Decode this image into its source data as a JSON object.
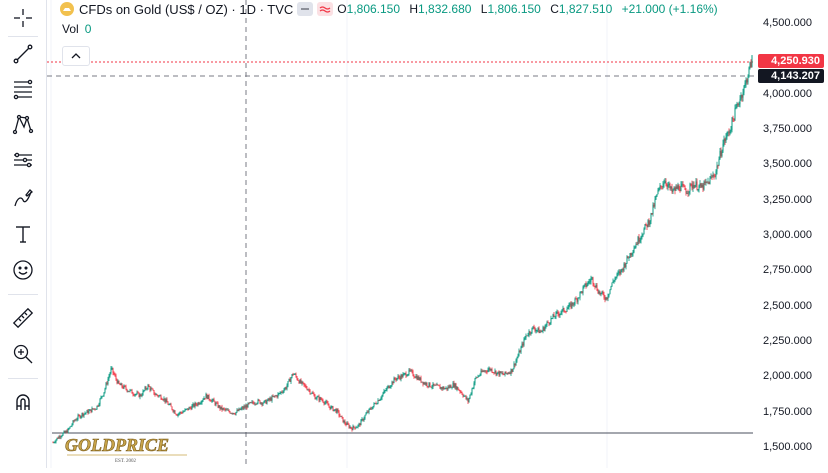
{
  "legend": {
    "symbol": "CFDs on Gold (US$ / OZ) · 1D · TVC",
    "open_label": "O",
    "open": "1,806.150",
    "high_label": "H",
    "high": "1,832.680",
    "low_label": "L",
    "low": "1,806.150",
    "close_label": "C",
    "close": "1,827.510",
    "change": "+21.000 (+1.16%)"
  },
  "volume": {
    "label": "Vol",
    "value": "0"
  },
  "price_scale": {
    "ticks": [
      "4,500.000",
      "4,000.000",
      "3,750.000",
      "3,500.000",
      "3,250.000",
      "3,000.000",
      "2,750.000",
      "2,500.000",
      "2,250.000",
      "2,000.000",
      "1,750.000",
      "1,500.000"
    ],
    "last_price": "4,250.930",
    "crosshair_price": "4,143.207"
  },
  "watermark": {
    "brand": "GOLDPRICE",
    "tagline": "EST. 2002"
  },
  "colors": {
    "up": "#089981",
    "down": "#f23645",
    "last_price_badge": "#f23645",
    "crosshair_badge": "#131722"
  },
  "toolbar": {
    "icons": [
      "crosshair-icon",
      "trend-line-icon",
      "fib-retracement-icon",
      "pattern-icon",
      "prediction-icon",
      "brush-icon",
      "text-icon",
      "emoji-icon",
      "ruler-icon",
      "zoom-in-icon",
      "magnet-icon"
    ]
  },
  "chart_data": {
    "type": "candlestick",
    "y_range": [
      1500,
      4500
    ],
    "series": [
      {
        "name": "CFDs on Gold (US$ / OZ)",
        "close_path": [
          1540,
          1590,
          1620,
          1700,
          1740,
          1760,
          1790,
          1900,
          2060,
          1950,
          1920,
          1890,
          1870,
          1940,
          1880,
          1860,
          1800,
          1740,
          1760,
          1790,
          1820,
          1870,
          1830,
          1780,
          1760,
          1750,
          1780,
          1810,
          1830,
          1820,
          1850,
          1880,
          1930,
          2030,
          1960,
          1920,
          1860,
          1840,
          1790,
          1760,
          1680,
          1640,
          1660,
          1740,
          1800,
          1860,
          1930,
          1990,
          2010,
          2040,
          2000,
          1960,
          1940,
          1930,
          1920,
          1950,
          1900,
          1830,
          1990,
          2040,
          2060,
          2030,
          2020,
          2050,
          2170,
          2300,
          2350,
          2320,
          2390,
          2440,
          2470,
          2500,
          2560,
          2640,
          2700,
          2600,
          2560,
          2690,
          2750,
          2850,
          2940,
          3030,
          3120,
          3300,
          3400,
          3310,
          3350,
          3320,
          3370,
          3340,
          3380,
          3450,
          3650,
          3760,
          3930,
          4060,
          4250
        ]
      }
    ]
  }
}
